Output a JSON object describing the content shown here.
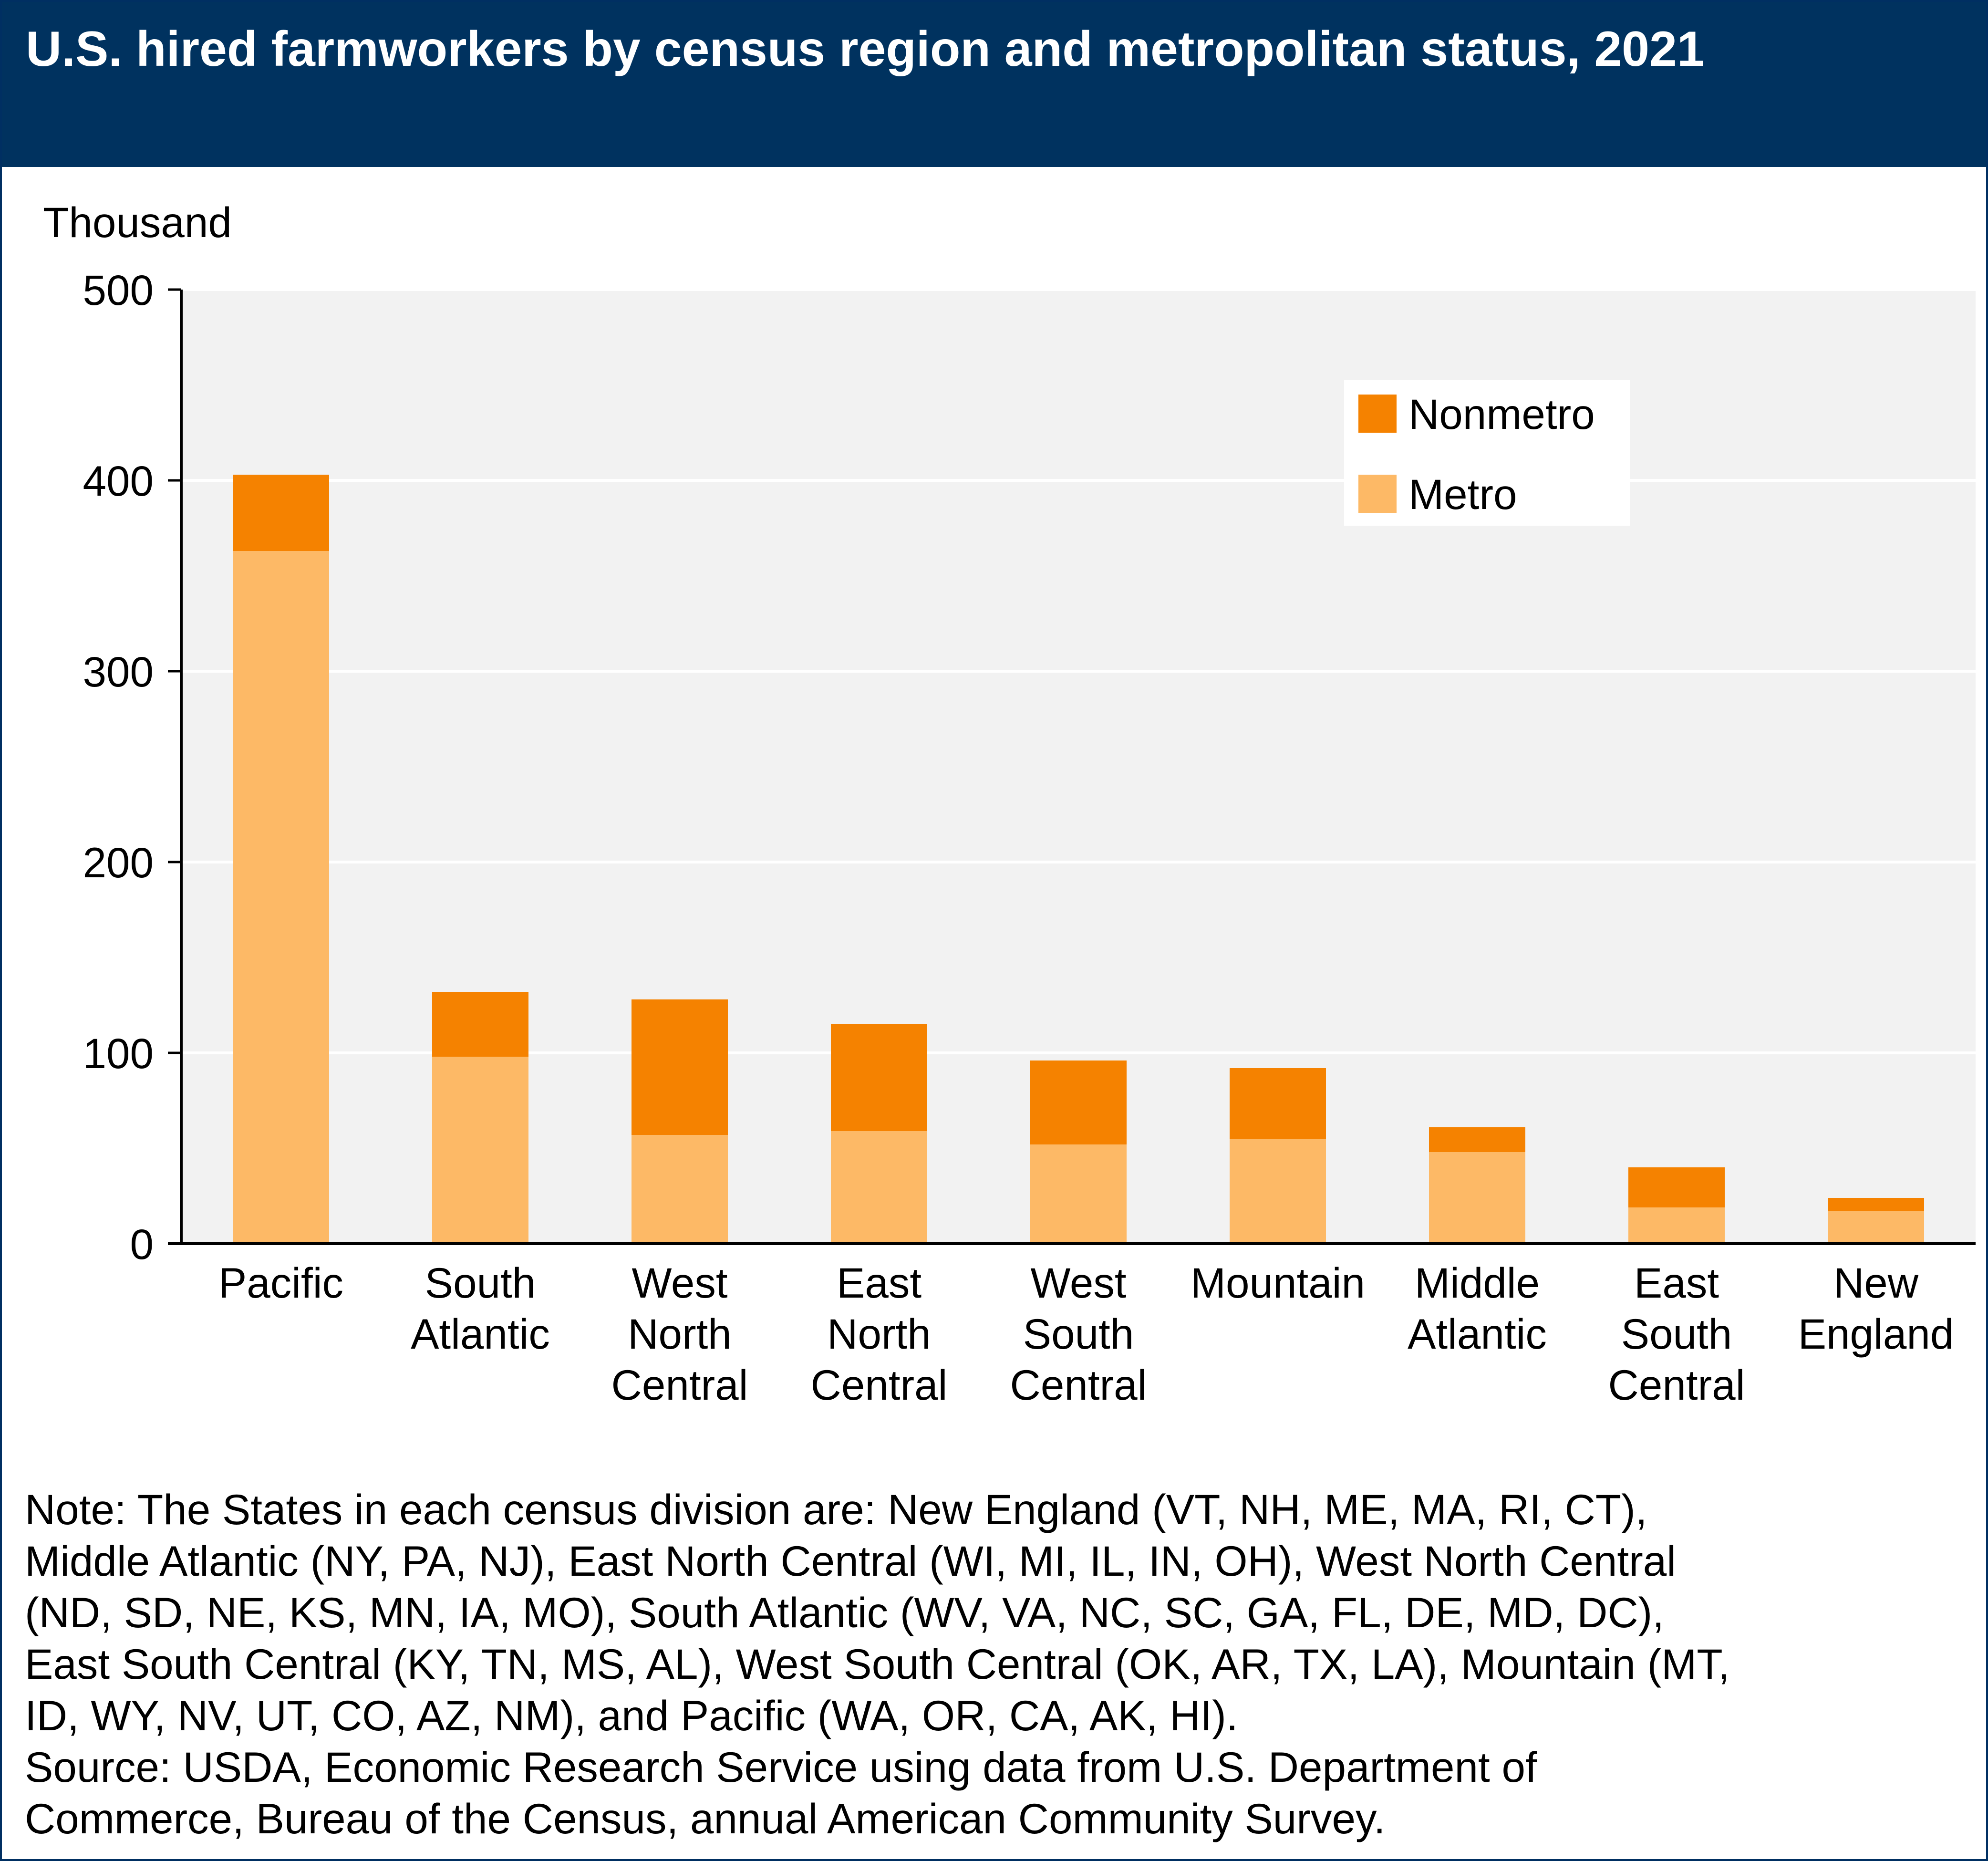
{
  "header": {
    "title": "U.S. hired farmworkers by census region and metropolitan status, 2021"
  },
  "colors": {
    "header_bg": "#00325f",
    "plot_bg": "#f2f2f2",
    "nonmetro": "#f58200",
    "metro": "#fdb966"
  },
  "chart_data": {
    "type": "bar",
    "stacked": true,
    "ylabel": "Thousand",
    "ylim": [
      0,
      500
    ],
    "yticks": [
      0,
      100,
      200,
      300,
      400,
      500
    ],
    "grid": true,
    "legend_position": "top-right",
    "categories": [
      [
        "Pacific"
      ],
      [
        "South",
        "Atlantic"
      ],
      [
        "West",
        "North",
        "Central"
      ],
      [
        "East",
        "North",
        "Central"
      ],
      [
        "West",
        "South",
        "Central"
      ],
      [
        "Mountain"
      ],
      [
        "Middle",
        "Atlantic"
      ],
      [
        "East",
        "South",
        "Central"
      ],
      [
        "New",
        "England"
      ]
    ],
    "series": [
      {
        "name": "Metro",
        "color": "#fdb966",
        "values": [
          363,
          98,
          57,
          59,
          52,
          55,
          48,
          19,
          17
        ]
      },
      {
        "name": "Nonmetro",
        "color": "#f58200",
        "values": [
          40,
          34,
          71,
          56,
          44,
          37,
          13,
          21,
          7
        ]
      }
    ],
    "legend_order": [
      "Nonmetro",
      "Metro"
    ]
  },
  "note": {
    "lines": [
      "Note: The States in each census division are: New England (VT, NH, ME, MA, RI, CT),",
      "Middle Atlantic (NY, PA, NJ), East North Central (WI, MI, IL, IN, OH), West North Central",
      "(ND, SD, NE, KS, MN, IA, MO), South Atlantic (WV, VA, NC, SC, GA, FL, DE, MD, DC),",
      "East South Central (KY, TN, MS, AL), West South Central (OK, AR, TX, LA), Mountain (MT,",
      "ID, WY, NV, UT, CO, AZ, NM), and Pacific (WA, OR, CA, AK, HI).",
      "Source: USDA, Economic Research Service using data from U.S. Department of",
      "Commerce, Bureau of the Census, annual American Community Survey."
    ]
  }
}
